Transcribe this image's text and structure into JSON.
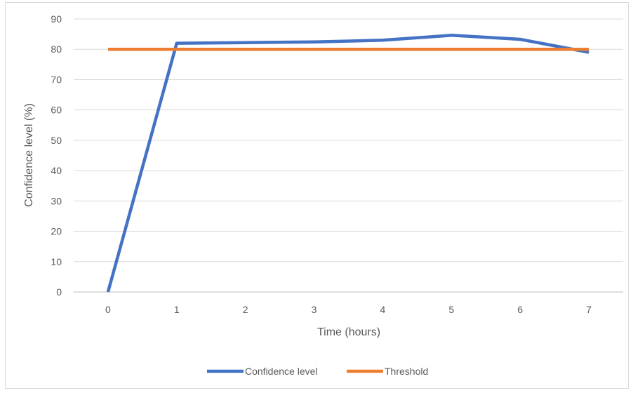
{
  "chart_data": {
    "type": "line",
    "title": "",
    "xlabel": "Time (hours)",
    "ylabel": "Confidence level (%)",
    "x": [
      0,
      1,
      2,
      3,
      4,
      5,
      6,
      7
    ],
    "ylim": [
      0,
      90
    ],
    "yticks": [
      0,
      10,
      20,
      30,
      40,
      50,
      60,
      70,
      80,
      90
    ],
    "grid": "horizontal",
    "legend_position": "bottom",
    "series": [
      {
        "name": "Confidence level",
        "color": "#4472C4",
        "values": [
          0,
          82,
          82.2,
          82.4,
          83,
          84.6,
          83.3,
          79
        ]
      },
      {
        "name": "Threshold",
        "color": "#ED7D31",
        "values": [
          80,
          80,
          80,
          80,
          80,
          80,
          80,
          80
        ]
      }
    ]
  }
}
